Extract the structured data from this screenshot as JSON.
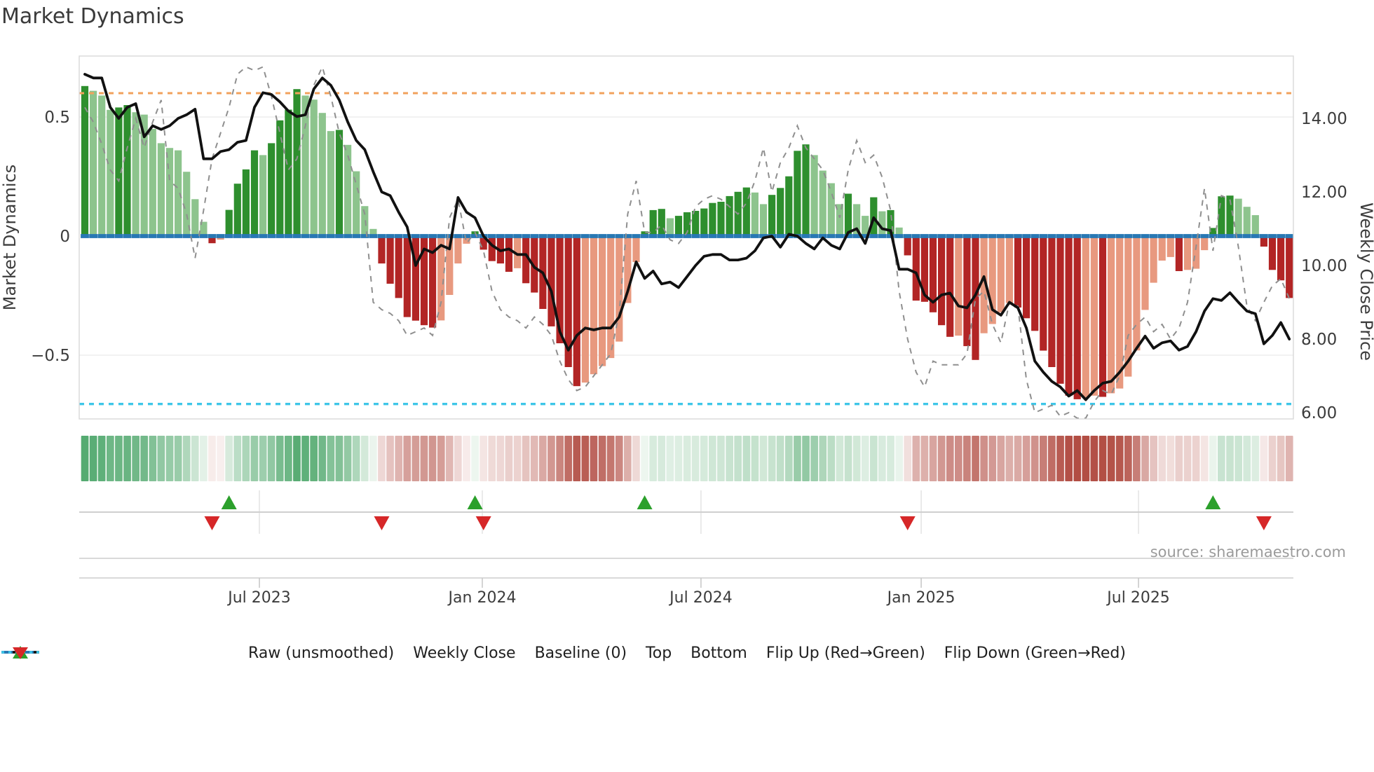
{
  "chart_data": {
    "type": "bar",
    "title": "Market Dynamics",
    "ylabel_left": "Market Dynamics",
    "ylabel_right": "Weekly Close Price",
    "source": "source: sharemaestro.com",
    "x_tick_labels": [
      "Jul 2023",
      "Jan 2024",
      "Jul 2024",
      "Jan 2025",
      "Jul 2025"
    ],
    "x_tick_weeks": [
      20.58,
      46.86,
      72.64,
      98.6,
      124.22
    ],
    "left_ticks": [
      {
        "v": 0.5,
        "label": "0.5"
      },
      {
        "v": 0.0,
        "label": "0"
      },
      {
        "v": -0.5,
        "label": "−0.5"
      }
    ],
    "right_ticks": [
      {
        "p": 14,
        "label": "14.00"
      },
      {
        "p": 12,
        "label": "12.00"
      },
      {
        "p": 10,
        "label": "10.00"
      },
      {
        "p": 8,
        "label": "8.00"
      },
      {
        "p": 6,
        "label": "6.00"
      }
    ],
    "baseline": 0,
    "top_line": 0.6,
    "bottom_line": -0.705,
    "ylim_left": [
      -0.76,
      0.76
    ],
    "ylim_right": [
      5.8,
      15.7
    ],
    "grid": "faint horizontal at 0.5 and -0.5",
    "legend_position": "bottom center",
    "series": [
      {
        "name": "Oscillator (weekly bars)",
        "axis": "left",
        "values": [
          0.63,
          0.61,
          0.59,
          0.53,
          0.54,
          0.55,
          0.52,
          0.51,
          0.45,
          0.39,
          0.37,
          0.36,
          0.27,
          0.155,
          0.06,
          -0.03,
          -0.015,
          0.11,
          0.22,
          0.28,
          0.36,
          0.34,
          0.39,
          0.486,
          0.531,
          0.617,
          0.59,
          0.573,
          0.517,
          0.441,
          0.446,
          0.383,
          0.272,
          0.126,
          0.03,
          -0.115,
          -0.2,
          -0.26,
          -0.34,
          -0.355,
          -0.374,
          -0.384,
          -0.354,
          -0.247,
          -0.115,
          -0.032,
          0.02,
          -0.057,
          -0.105,
          -0.115,
          -0.15,
          -0.135,
          -0.198,
          -0.237,
          -0.306,
          -0.379,
          -0.45,
          -0.55,
          -0.63,
          -0.615,
          -0.58,
          -0.546,
          -0.512,
          -0.443,
          -0.281,
          -0.109,
          0.02,
          0.109,
          0.114,
          0.075,
          0.085,
          0.1,
          0.106,
          0.116,
          0.139,
          0.144,
          0.168,
          0.186,
          0.204,
          0.183,
          0.134,
          0.173,
          0.202,
          0.251,
          0.358,
          0.385,
          0.34,
          0.275,
          0.222,
          0.134,
          0.178,
          0.134,
          0.085,
          0.163,
          0.104,
          0.109,
          0.036,
          -0.081,
          -0.271,
          -0.276,
          -0.32,
          -0.374,
          -0.423,
          -0.418,
          -0.462,
          -0.52,
          -0.408,
          -0.369,
          -0.32,
          -0.281,
          -0.3,
          -0.345,
          -0.398,
          -0.481,
          -0.55,
          -0.62,
          -0.67,
          -0.685,
          -0.68,
          -0.67,
          -0.675,
          -0.66,
          -0.64,
          -0.59,
          -0.48,
          -0.31,
          -0.196,
          -0.103,
          -0.088,
          -0.147,
          -0.142,
          -0.137,
          -0.059,
          0.034,
          0.167,
          0.17,
          0.157,
          0.123,
          0.088,
          -0.044,
          -0.142,
          -0.186,
          -0.26
        ]
      },
      {
        "name": "Weekly Close",
        "axis": "right",
        "values": [
          15.2,
          15.1,
          15.1,
          14.3,
          14.0,
          14.3,
          14.4,
          13.5,
          13.8,
          13.7,
          13.8,
          14.0,
          14.1,
          14.25,
          12.9,
          12.9,
          13.1,
          13.15,
          13.35,
          13.4,
          14.3,
          14.7,
          14.65,
          14.45,
          14.2,
          14.05,
          14.1,
          14.8,
          15.1,
          14.9,
          14.5,
          13.9,
          13.4,
          13.15,
          12.55,
          12.0,
          11.9,
          11.45,
          11.05,
          10.0,
          10.45,
          10.35,
          10.55,
          10.45,
          11.85,
          11.45,
          11.3,
          10.8,
          10.55,
          10.4,
          10.45,
          10.3,
          10.3,
          9.95,
          9.8,
          9.3,
          8.2,
          7.7,
          8.1,
          8.3,
          8.25,
          8.3,
          8.3,
          8.6,
          9.3,
          10.1,
          9.65,
          9.85,
          9.5,
          9.55,
          9.4,
          9.7,
          10.0,
          10.25,
          10.3,
          10.3,
          10.15,
          10.15,
          10.2,
          10.4,
          10.75,
          10.8,
          10.5,
          10.85,
          10.8,
          10.6,
          10.45,
          10.75,
          10.55,
          10.45,
          10.9,
          11.0,
          10.6,
          11.3,
          11.0,
          10.95,
          9.9,
          9.9,
          9.8,
          9.2,
          9.0,
          9.2,
          9.25,
          8.9,
          8.85,
          9.2,
          9.7,
          8.8,
          8.65,
          9.0,
          8.85,
          8.3,
          7.4,
          7.1,
          6.85,
          6.7,
          6.45,
          6.6,
          6.35,
          6.6,
          6.8,
          6.85,
          7.1,
          7.4,
          7.75,
          8.08,
          7.75,
          7.9,
          7.95,
          7.7,
          7.8,
          8.2,
          8.76,
          9.1,
          9.05,
          9.26,
          9.0,
          8.76,
          8.69,
          7.87,
          8.1,
          8.45,
          8.0
        ]
      },
      {
        "name": "Raw (unsmoothed)",
        "axis": "right",
        "values": [
          14.3,
          13.9,
          13.3,
          12.6,
          12.3,
          13.2,
          14.0,
          13.2,
          13.9,
          14.5,
          12.3,
          12.1,
          11.4,
          10.2,
          11.5,
          12.9,
          13.6,
          14.3,
          15.2,
          15.4,
          15.3,
          15.4,
          14.6,
          13.6,
          12.6,
          12.9,
          13.8,
          14.9,
          15.4,
          14.6,
          13.6,
          13.0,
          12.2,
          11.4,
          9.0,
          8.8,
          8.7,
          8.5,
          8.1,
          8.2,
          8.3,
          8.1,
          9.0,
          11.3,
          11.8,
          10.6,
          10.9,
          10.4,
          9.3,
          8.8,
          8.6,
          8.5,
          8.3,
          8.6,
          8.4,
          8.1,
          7.4,
          6.9,
          6.6,
          6.7,
          7.0,
          7.3,
          7.6,
          8.7,
          11.4,
          12.3,
          10.9,
          10.9,
          11.1,
          10.7,
          10.6,
          10.9,
          11.6,
          11.8,
          11.9,
          11.8,
          11.6,
          11.4,
          11.7,
          12.3,
          13.2,
          12.0,
          12.8,
          13.2,
          13.8,
          13.2,
          12.9,
          12.6,
          12.0,
          11.3,
          12.6,
          13.4,
          12.8,
          13.0,
          12.4,
          11.5,
          9.3,
          8.0,
          7.1,
          6.7,
          7.4,
          7.3,
          7.3,
          7.3,
          7.6,
          9.1,
          9.3,
          8.4,
          7.9,
          9.0,
          8.9,
          6.9,
          6.0,
          6.1,
          6.2,
          5.9,
          6.0,
          5.6,
          5.8,
          6.3,
          6.6,
          6.5,
          7.0,
          8.1,
          8.4,
          8.6,
          8.2,
          8.4,
          8.0,
          8.3,
          9.0,
          10.5,
          12.1,
          10.4,
          11.9,
          11.8,
          10.5,
          8.9,
          8.5,
          9.0,
          9.45,
          9.64,
          9.1
        ]
      }
    ],
    "flip_up_weeks": [
      17,
      46,
      66,
      133
    ],
    "flip_down_weeks": [
      15,
      35,
      47,
      97,
      139
    ],
    "colors": {
      "bar_green_strong": "#2e8f2e",
      "bar_green_light": "#8dc48d",
      "bar_red_strong": "#b22525",
      "bar_red_light": "#e8997f",
      "weekly_close": "#111111",
      "raw": "#8f8f8f",
      "baseline": "#2878b4",
      "top": "#f2a25c",
      "bottom": "#3fc6e8",
      "flip_up": "#2ca02c",
      "flip_down": "#d62728",
      "heat_pos": "#44a263",
      "heat_neg": "#b0493f",
      "grid": "#ededed",
      "spine": "#d9d9d9",
      "tick_text": "#3c3c3c"
    },
    "legend": [
      {
        "type": "dash-gray",
        "label": "Raw (unsmoothed)"
      },
      {
        "type": "solid-black",
        "label": "Weekly Close"
      },
      {
        "type": "dash-blue",
        "label": "Baseline (0)"
      },
      {
        "type": "dot-orange",
        "label": "Top"
      },
      {
        "type": "dot-cyan",
        "label": "Bottom"
      },
      {
        "type": "tri-up",
        "label": "Flip Up (Red→Green)"
      },
      {
        "type": "tri-down",
        "label": "Flip Down (Green→Red)"
      }
    ]
  }
}
